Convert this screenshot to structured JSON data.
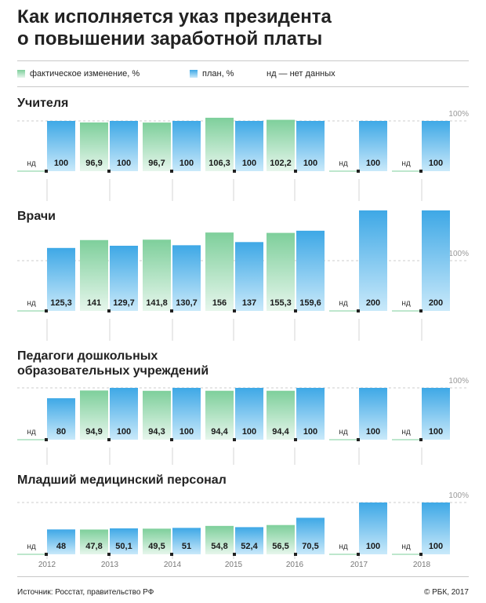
{
  "title": {
    "line1": "Как исполняется указ президента",
    "line2": "о повышении заработной платы"
  },
  "legend": {
    "fact": "фактическое изменение, %",
    "plan": "план, %",
    "nd": "нд — нет данных"
  },
  "colors": {
    "fact_top": "#7ecf9b",
    "fact_bottom": "#e6f6ec",
    "plan_top": "#3ea8e6",
    "plan_bottom": "#c9e9fa",
    "text": "#1a1a1a",
    "grid": "#cccccc"
  },
  "chart_data": {
    "type": "bar",
    "categories": [
      "2012",
      "2013",
      "2014",
      "2015",
      "2016",
      "2017",
      "2018"
    ],
    "nd_label": "нд",
    "ref_label": "100%",
    "panels": [
      {
        "title": "Учителя",
        "series": [
          {
            "name": "фактическое изменение, %",
            "values": [
              null,
              96.9,
              96.7,
              106.3,
              102.2,
              null,
              null
            ],
            "labels": [
              "нд",
              "96,9",
              "96,7",
              "106,3",
              "102,2",
              "нд",
              "нд"
            ]
          },
          {
            "name": "план, %",
            "values": [
              100,
              100,
              100,
              100,
              100,
              100,
              100
            ],
            "labels": [
              "100",
              "100",
              "100",
              "100",
              "100",
              "100",
              "100"
            ]
          }
        ]
      },
      {
        "title": "Врачи",
        "series": [
          {
            "name": "фактическое изменение, %",
            "values": [
              null,
              141,
              141.8,
              156,
              155.3,
              null,
              null
            ],
            "labels": [
              "нд",
              "141",
              "141,8",
              "156",
              "155,3",
              "нд",
              "нд"
            ]
          },
          {
            "name": "план, %",
            "values": [
              125.3,
              129.7,
              130.7,
              137,
              159.6,
              200,
              200
            ],
            "labels": [
              "125,3",
              "129,7",
              "130,7",
              "137",
              "159,6",
              "200",
              "200"
            ]
          }
        ]
      },
      {
        "title": "Педагоги дошкольных образовательных учреждений",
        "title_lines": [
          "Педагоги дошкольных",
          "образовательных учреждений"
        ],
        "series": [
          {
            "name": "фактическое изменение, %",
            "values": [
              null,
              94.9,
              94.3,
              94.4,
              94.4,
              null,
              null
            ],
            "labels": [
              "нд",
              "94,9",
              "94,3",
              "94,4",
              "94,4",
              "нд",
              "нд"
            ]
          },
          {
            "name": "план, %",
            "values": [
              80,
              100,
              100,
              100,
              100,
              100,
              100
            ],
            "labels": [
              "80",
              "100",
              "100",
              "100",
              "100",
              "100",
              "100"
            ]
          }
        ]
      },
      {
        "title": "Младший медицинский персонал",
        "series": [
          {
            "name": "фактическое изменение, %",
            "values": [
              null,
              47.8,
              49.5,
              54.8,
              56.5,
              null,
              null
            ],
            "labels": [
              "нд",
              "47,8",
              "49,5",
              "54,8",
              "56,5",
              "нд",
              "нд"
            ]
          },
          {
            "name": "план, %",
            "values": [
              48,
              50.1,
              51,
              52.4,
              70.5,
              100,
              100
            ],
            "labels": [
              "48",
              "50,1",
              "51",
              "52,4",
              "70,5",
              "100",
              "100"
            ]
          }
        ]
      }
    ]
  },
  "footer": {
    "source": "Источник: Росстат, правительство РФ",
    "copyright": "© РБК, 2017"
  }
}
